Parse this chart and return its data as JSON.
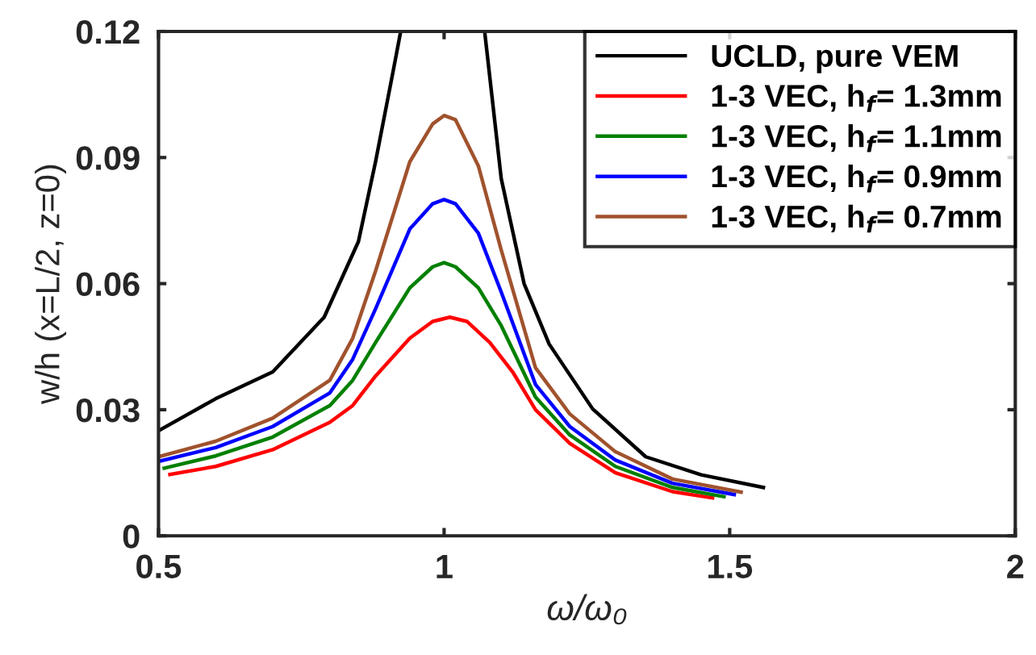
{
  "chart_data": {
    "type": "line",
    "xlabel": "ω/ω₀",
    "ylabel": "w/h (x=L/2, z=0)",
    "xlim": [
      0.5,
      2
    ],
    "xticks": [
      0.5,
      1,
      1.5,
      2
    ],
    "ylim": [
      0,
      0.12
    ],
    "yticks": [
      0,
      0.03,
      0.06,
      0.09,
      0.12
    ],
    "grid": false,
    "legend": "top right",
    "marker": "none",
    "line_style": "solid",
    "series": [
      {
        "name": "UCLD, pure VEM",
        "color": "#000000",
        "x": [
          0.5,
          0.6,
          0.7,
          0.79,
          0.85,
          0.88,
          0.91,
          0.924,
          null,
          1.071,
          1.1,
          1.14,
          1.184,
          1.26,
          1.353,
          1.45,
          1.559
        ],
        "values": [
          0.025,
          0.0326,
          0.039,
          0.052,
          0.07,
          0.089,
          0.11,
          0.12,
          null,
          0.12,
          0.085,
          0.06,
          0.0456,
          0.0302,
          0.0188,
          0.0145,
          0.0115
        ]
      },
      {
        "name": "1-3 VEC, h$_{f}$= 1.3mm",
        "color": "#ff0000",
        "x": [
          0.52,
          0.6,
          0.7,
          0.8,
          0.84,
          0.88,
          0.94,
          0.98,
          1.01,
          1.04,
          1.08,
          1.12,
          1.16,
          1.22,
          1.3,
          1.4,
          1.47
        ],
        "values": [
          0.0146,
          0.0165,
          0.0205,
          0.027,
          0.031,
          0.038,
          0.047,
          0.051,
          0.052,
          0.051,
          0.046,
          0.039,
          0.03,
          0.022,
          0.015,
          0.0105,
          0.009
        ]
      },
      {
        "name": "1-3 VEC, h$_{f}$= 1.1mm",
        "color": "#008000",
        "x": [
          0.51,
          0.6,
          0.7,
          0.8,
          0.84,
          0.88,
          0.94,
          0.98,
          1.0,
          1.02,
          1.06,
          1.1,
          1.16,
          1.22,
          1.3,
          1.4,
          1.49
        ],
        "values": [
          0.0161,
          0.019,
          0.0235,
          0.031,
          0.037,
          0.046,
          0.059,
          0.064,
          0.065,
          0.064,
          0.059,
          0.05,
          0.033,
          0.024,
          0.0165,
          0.0115,
          0.0093
        ]
      },
      {
        "name": "1-3 VEC, h$_{f}$= 0.9mm",
        "color": "#0000ff",
        "x": [
          0.5,
          0.6,
          0.7,
          0.8,
          0.84,
          0.88,
          0.94,
          0.98,
          1.0,
          1.02,
          1.06,
          1.1,
          1.16,
          1.22,
          1.3,
          1.4,
          1.508
        ],
        "values": [
          0.0177,
          0.021,
          0.026,
          0.034,
          0.042,
          0.054,
          0.073,
          0.079,
          0.08,
          0.079,
          0.072,
          0.058,
          0.036,
          0.026,
          0.018,
          0.0125,
          0.0098
        ]
      },
      {
        "name": "1-3 VEC, h$_{f}$= 0.7mm",
        "color": "#a0522d",
        "x": [
          0.5,
          0.6,
          0.7,
          0.8,
          0.84,
          0.88,
          0.94,
          0.98,
          1.0,
          1.02,
          1.06,
          1.1,
          1.16,
          1.22,
          1.3,
          1.4,
          1.52
        ],
        "values": [
          0.0188,
          0.0225,
          0.028,
          0.037,
          0.047,
          0.063,
          0.089,
          0.098,
          0.1,
          0.099,
          0.088,
          0.068,
          0.04,
          0.029,
          0.02,
          0.0135,
          0.0104
        ]
      }
    ]
  }
}
